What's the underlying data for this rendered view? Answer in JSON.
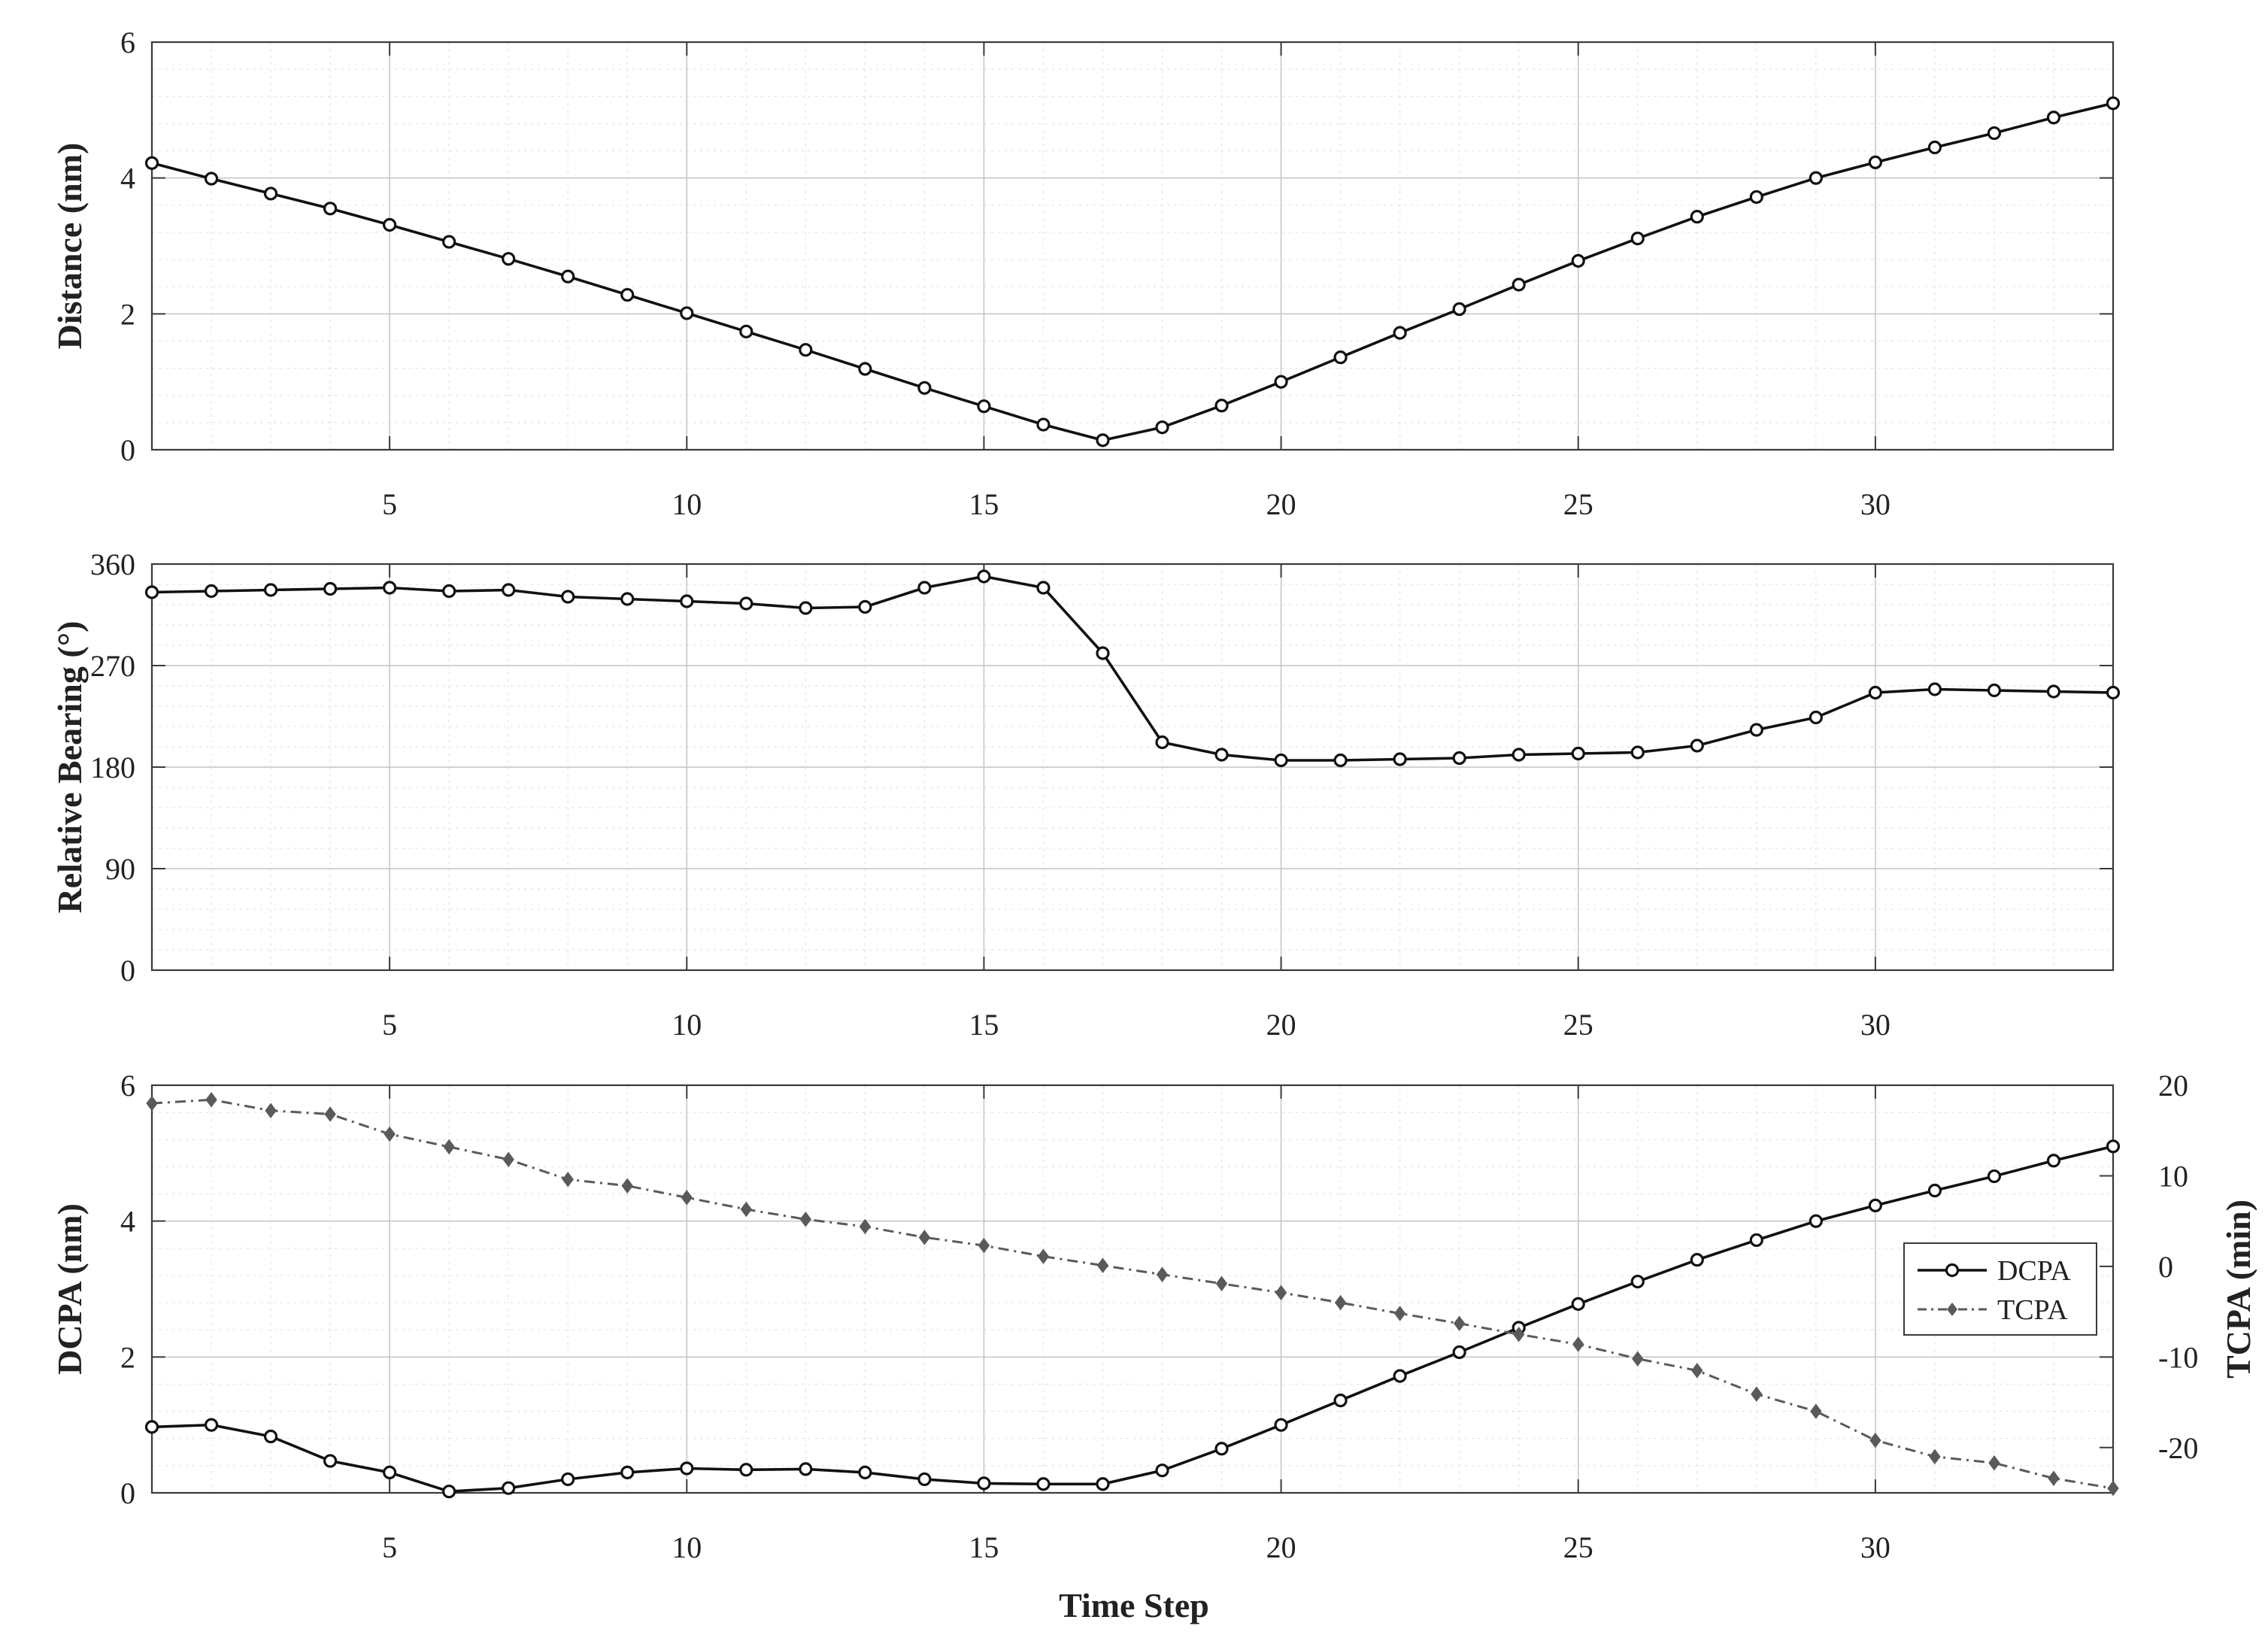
{
  "x_axis_label": "Time Step",
  "colors": {
    "solid_series": "#111111",
    "dashed_series": "#5a5a5a",
    "grid": "#c4c4c4"
  },
  "chart_data": [
    {
      "type": "line",
      "ylabel": "Distance (nm)",
      "xlim": [
        1,
        34
      ],
      "ylim": [
        0,
        6
      ],
      "xticks": [
        5,
        10,
        15,
        20,
        25,
        30
      ],
      "yticks": [
        0,
        2,
        4,
        6
      ],
      "grid": true,
      "series": [
        {
          "style": "solid-circle",
          "x": [
            1,
            2,
            3,
            4,
            5,
            6,
            7,
            8,
            9,
            10,
            11,
            12,
            13,
            14,
            15,
            16,
            17,
            18,
            19,
            20,
            21,
            22,
            23,
            24,
            25,
            26,
            27,
            28,
            29,
            30,
            31,
            32,
            33,
            34
          ],
          "values": [
            4.22,
            3.99,
            3.77,
            3.55,
            3.31,
            3.06,
            2.81,
            2.55,
            2.28,
            2.01,
            1.74,
            1.47,
            1.19,
            0.91,
            0.64,
            0.37,
            0.14,
            0.33,
            0.65,
            1.0,
            1.36,
            1.72,
            2.07,
            2.43,
            2.78,
            3.11,
            3.43,
            3.72,
            4.0,
            4.23,
            4.45,
            4.66,
            4.89,
            5.1
          ]
        }
      ]
    },
    {
      "type": "line",
      "ylabel": "Relative Bearing (°)",
      "xlim": [
        1,
        34
      ],
      "ylim": [
        0,
        360
      ],
      "xticks": [
        5,
        10,
        15,
        20,
        25,
        30
      ],
      "yticks": [
        0,
        90,
        180,
        270,
        360
      ],
      "grid": true,
      "series": [
        {
          "style": "solid-circle",
          "x": [
            1,
            2,
            3,
            4,
            5,
            6,
            7,
            8,
            9,
            10,
            11,
            12,
            13,
            14,
            15,
            16,
            17,
            18,
            19,
            20,
            21,
            22,
            23,
            24,
            25,
            26,
            27,
            28,
            29,
            30,
            31,
            32,
            33,
            34
          ],
          "values": [
            335,
            336,
            337,
            338,
            339,
            336,
            337,
            331,
            329,
            327,
            325,
            321,
            322,
            339,
            349,
            339,
            281,
            202,
            191,
            186,
            186,
            187,
            188,
            191,
            192,
            193,
            199,
            213,
            224,
            246,
            249,
            248,
            247,
            246
          ]
        }
      ]
    },
    {
      "type": "line",
      "ylabel": "DCPA (nm)",
      "y2label": "TCPA (min)",
      "xlabel": "Time Step",
      "xlim": [
        1,
        34
      ],
      "ylim": [
        0,
        6
      ],
      "y2lim": [
        -25,
        20
      ],
      "xticks": [
        5,
        10,
        15,
        20,
        25,
        30
      ],
      "yticks": [
        0,
        2,
        4,
        6
      ],
      "y2ticks": [
        -20,
        -10,
        0,
        10,
        20
      ],
      "grid": true,
      "legend": "right",
      "series": [
        {
          "name": "DCPA",
          "axis": "left",
          "style": "solid-circle",
          "x": [
            1,
            2,
            3,
            4,
            5,
            6,
            7,
            8,
            9,
            10,
            11,
            12,
            13,
            14,
            15,
            16,
            17,
            18,
            19,
            20,
            21,
            22,
            23,
            24,
            25,
            26,
            27,
            28,
            29,
            30,
            31,
            32,
            33,
            34
          ],
          "values": [
            0.97,
            1.0,
            0.83,
            0.47,
            0.3,
            0.02,
            0.07,
            0.2,
            0.3,
            0.36,
            0.34,
            0.35,
            0.3,
            0.2,
            0.14,
            0.13,
            0.13,
            0.33,
            0.65,
            1.0,
            1.36,
            1.72,
            2.07,
            2.43,
            2.78,
            3.11,
            3.43,
            3.72,
            4.0,
            4.23,
            4.45,
            4.66,
            4.89,
            5.1
          ]
        },
        {
          "name": "TCPA",
          "axis": "right",
          "style": "dashed-diamond",
          "x": [
            1,
            2,
            3,
            4,
            5,
            6,
            7,
            8,
            9,
            10,
            11,
            12,
            13,
            14,
            15,
            16,
            17,
            18,
            19,
            20,
            21,
            22,
            23,
            24,
            25,
            26,
            27,
            28,
            29,
            30,
            31,
            32,
            33,
            34
          ],
          "values": [
            18.0,
            18.4,
            17.2,
            16.8,
            14.6,
            13.2,
            11.8,
            9.6,
            8.9,
            7.6,
            6.3,
            5.2,
            4.4,
            3.2,
            2.3,
            1.1,
            0.1,
            -0.9,
            -1.9,
            -2.9,
            -4.0,
            -5.2,
            -6.3,
            -7.5,
            -8.6,
            -10.2,
            -11.5,
            -14.1,
            -16.0,
            -19.2,
            -21.0,
            -21.7,
            -23.4,
            -24.5
          ]
        }
      ]
    }
  ]
}
